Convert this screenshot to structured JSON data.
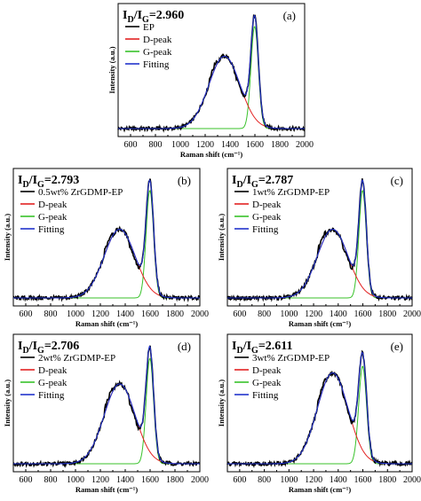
{
  "chart_data": [
    {
      "type": "line",
      "panel_label": "(a)",
      "ratio": {
        "prefix": "I",
        "sub1": "D",
        "mid": "/I",
        "sub2": "G",
        "suffix": "=2.960"
      },
      "xlabel": "Raman shift (cm⁻¹)",
      "ylabel": "Intensity (a.u.)",
      "xlim": [
        500,
        2000
      ],
      "xticks": [
        600,
        800,
        1000,
        1200,
        1400,
        1600,
        1800,
        2000
      ],
      "grid": false,
      "legend": "top-left",
      "params": {
        "D": 0.68,
        "G": 0.96,
        "Dw": 125,
        "Gw": 30
      },
      "series": [
        {
          "name": "EP",
          "color": "#000000"
        },
        {
          "name": "D-peak",
          "color": "#e32222"
        },
        {
          "name": "G-peak",
          "color": "#38c22a"
        },
        {
          "name": "Fitting",
          "color": "#2233cc"
        }
      ]
    },
    {
      "type": "line",
      "panel_label": "(b)",
      "ratio": {
        "prefix": "I",
        "sub1": "D",
        "mid": "/I",
        "sub2": "G",
        "suffix": "=2.793"
      },
      "xlabel": "Raman shift (cm⁻¹)",
      "ylabel": "Intensity (a.u.)",
      "xlim": [
        500,
        2000
      ],
      "xticks": [
        600,
        800,
        1000,
        1200,
        1400,
        1600,
        1800,
        2000
      ],
      "grid": false,
      "legend": "top-left",
      "params": {
        "D": 0.62,
        "G": 0.97,
        "Dw": 125,
        "Gw": 30
      },
      "series": [
        {
          "name": "0.5wt% ZrGDMP-EP",
          "color": "#000000"
        },
        {
          "name": "D-peak",
          "color": "#e32222"
        },
        {
          "name": "G-peak",
          "color": "#38c22a"
        },
        {
          "name": "Fitting",
          "color": "#2233cc"
        }
      ]
    },
    {
      "type": "line",
      "panel_label": "(c)",
      "ratio": {
        "prefix": "I",
        "sub1": "D",
        "mid": "/I",
        "sub2": "G",
        "suffix": "=2.787"
      },
      "xlabel": "Raman shift (cm⁻¹)",
      "ylabel": "Intensity (a.u.)",
      "xlim": [
        500,
        2000
      ],
      "xticks": [
        600,
        800,
        1000,
        1200,
        1400,
        1600,
        1800,
        2000
      ],
      "grid": false,
      "legend": "top-left",
      "params": {
        "D": 0.62,
        "G": 0.97,
        "Dw": 125,
        "Gw": 30
      },
      "series": [
        {
          "name": "1wt% ZrGDMP-EP",
          "color": "#000000"
        },
        {
          "name": "D-peak",
          "color": "#e32222"
        },
        {
          "name": "G-peak",
          "color": "#38c22a"
        },
        {
          "name": "Fitting",
          "color": "#2233cc"
        }
      ]
    },
    {
      "type": "line",
      "panel_label": "(d)",
      "ratio": {
        "prefix": "I",
        "sub1": "D",
        "mid": "/I",
        "sub2": "G",
        "suffix": "=2.706"
      },
      "xlabel": "Raman shift (cm⁻¹)",
      "ylabel": "Intensity (a.u.)",
      "xlim": [
        500,
        2000
      ],
      "xticks": [
        600,
        800,
        1000,
        1200,
        1400,
        1600,
        1800,
        2000
      ],
      "grid": false,
      "legend": "top-left",
      "params": {
        "D": 0.72,
        "G": 0.95,
        "Dw": 125,
        "Gw": 30
      },
      "series": [
        {
          "name": "2wt% ZrGDMP-EP",
          "color": "#000000"
        },
        {
          "name": "D-peak",
          "color": "#e32222"
        },
        {
          "name": "G-peak",
          "color": "#38c22a"
        },
        {
          "name": "Fitting",
          "color": "#2233cc"
        }
      ]
    },
    {
      "type": "line",
      "panel_label": "(e)",
      "ratio": {
        "prefix": "I",
        "sub1": "D",
        "mid": "/I",
        "sub2": "G",
        "suffix": "=2.611"
      },
      "xlabel": "Raman shift (cm⁻¹)",
      "ylabel": "Intensity (a.u.)",
      "xlim": [
        500,
        2000
      ],
      "xticks": [
        600,
        800,
        1000,
        1200,
        1400,
        1600,
        1800,
        2000
      ],
      "grid": false,
      "legend": "top-left",
      "params": {
        "D": 0.82,
        "G": 0.88,
        "Dw": 125,
        "Gw": 32
      },
      "series": [
        {
          "name": "3wt% ZrGDMP-EP",
          "color": "#000000"
        },
        {
          "name": "D-peak",
          "color": "#e32222"
        },
        {
          "name": "G-peak",
          "color": "#38c22a"
        },
        {
          "name": "Fitting",
          "color": "#2233cc"
        }
      ]
    }
  ]
}
